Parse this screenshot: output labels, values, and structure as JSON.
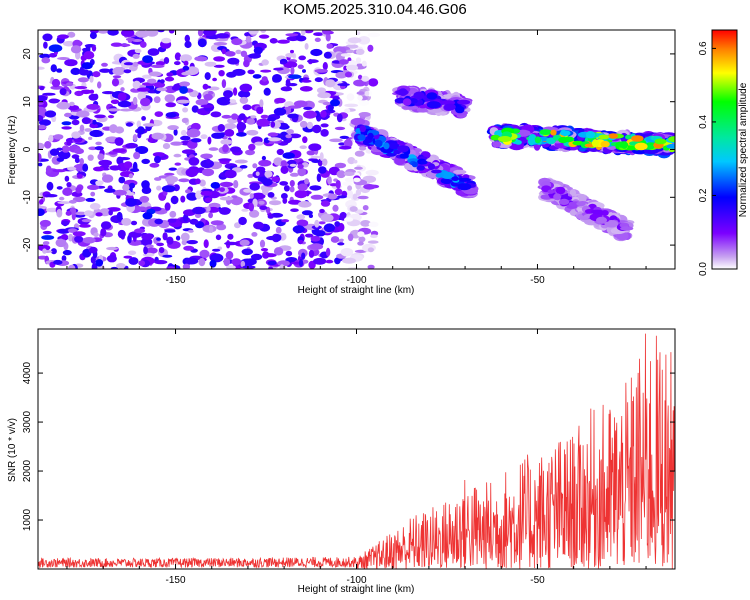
{
  "title": "KOM5.2025.310.04.46.G06",
  "chart_data": [
    {
      "type": "heatmap",
      "name": "spectrogram",
      "xlabel": "Height of straight line (km)",
      "ylabel": "Frequency (Hz)",
      "xlim": [
        -188,
        -12
      ],
      "ylim": [
        -25,
        25
      ],
      "xticks": [
        -150,
        -100,
        -50
      ],
      "yticks": [
        -20,
        -10,
        0,
        10,
        20
      ],
      "colorbar": {
        "label": "Normalized spectral amplitude",
        "range": [
          0,
          0.65
        ],
        "ticks": [
          0.0,
          0.2,
          0.4,
          0.6
        ]
      },
      "features": [
        {
          "description": "broadband noise region",
          "x_range": [
            -188,
            -95
          ],
          "y_range": [
            -25,
            25
          ],
          "amplitude": 0.12
        },
        {
          "description": "descending signal branch",
          "x_from": -100,
          "x_to": -68,
          "y_from": 4,
          "y_to": -8,
          "amplitude": 0.28
        },
        {
          "description": "upper faint branch",
          "x_from": -88,
          "x_to": -70,
          "y_from": 11,
          "y_to": 9,
          "amplitude": 0.2
        },
        {
          "description": "main signal branch",
          "x_from": -62,
          "x_to": -12,
          "y_from": 3,
          "y_to": 1,
          "amplitude": 0.6
        },
        {
          "description": "lower faint branch",
          "x_from": -48,
          "x_to": -25,
          "y_from": -8,
          "y_to": -17,
          "amplitude": 0.12
        }
      ]
    },
    {
      "type": "line",
      "name": "snr",
      "xlabel": "Height of straight line (km)",
      "ylabel": "SNR (10 * v/v)",
      "xlim": [
        -188,
        -12
      ],
      "ylim": [
        0,
        4900
      ],
      "xticks": [
        -150,
        -100,
        -50
      ],
      "yticks": [
        1000,
        2000,
        3000,
        4000
      ],
      "color": "#ee3333",
      "envelope": {
        "x": [
          -188,
          -150,
          -100,
          -95,
          -90,
          -85,
          -80,
          -75,
          -70,
          -65,
          -60,
          -55,
          -50,
          -45,
          -40,
          -35,
          -30,
          -25,
          -20,
          -15,
          -12
        ],
        "max_y": [
          220,
          220,
          250,
          500,
          800,
          1100,
          1250,
          1450,
          1900,
          1750,
          2000,
          2300,
          2400,
          2700,
          2800,
          3300,
          3450,
          3850,
          4900,
          4800,
          4300
        ]
      }
    }
  ]
}
